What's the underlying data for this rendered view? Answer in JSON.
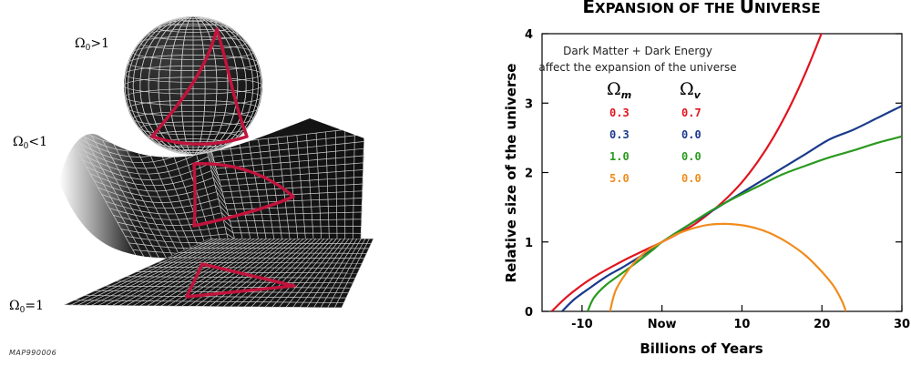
{
  "geometry_panel": {
    "labels": {
      "closed": {
        "base": "Ω",
        "sub": "0",
        "rest": ">1"
      },
      "open": {
        "base": "Ω",
        "sub": "0",
        "rest": "<1"
      },
      "flat": {
        "base": "Ω",
        "sub": "0",
        "rest": "=1"
      }
    },
    "credit": "MAP990006",
    "colors": {
      "surface": "#1a1a1a",
      "grid": "#cfcfcf",
      "triangle": "#c0143c"
    }
  },
  "chart_data": {
    "type": "line",
    "title_parts": [
      {
        "text": "E",
        "big": true
      },
      {
        "text": "XPANSION OF THE ",
        "big": false
      },
      {
        "text": "U",
        "big": true
      },
      {
        "text": "NIVERSE",
        "big": false
      }
    ],
    "xlabel": "Billions of Years",
    "ylabel": "Relative size of the universe",
    "xlim": [
      -15,
      30
    ],
    "ylim": [
      0,
      4
    ],
    "x_ticks": [
      {
        "value": -10,
        "label": "-10"
      },
      {
        "value": 0,
        "label": "Now"
      },
      {
        "value": 10,
        "label": "10"
      },
      {
        "value": 20,
        "label": "20"
      },
      {
        "value": 30,
        "label": "30"
      }
    ],
    "y_ticks": [
      0,
      1,
      2,
      3,
      4
    ],
    "annotation_lines": [
      "Dark Matter + Dark Energy",
      "affect the expansion of the universe"
    ],
    "legend_headers": {
      "m": {
        "base": "Ω",
        "sub": "m"
      },
      "v": {
        "base": "Ω",
        "sub": "v"
      }
    },
    "series": [
      {
        "omega_m": "0.3",
        "omega_v": "0.7",
        "color": "#e0141e",
        "points": [
          [
            -13.8,
            0
          ],
          [
            -12,
            0.2
          ],
          [
            -10,
            0.38
          ],
          [
            -8,
            0.53
          ],
          [
            -6,
            0.66
          ],
          [
            -4,
            0.78
          ],
          [
            -2,
            0.89
          ],
          [
            0,
            1.0
          ],
          [
            2,
            1.12
          ],
          [
            4,
            1.25
          ],
          [
            6,
            1.42
          ],
          [
            8,
            1.62
          ],
          [
            10,
            1.86
          ],
          [
            12,
            2.16
          ],
          [
            14,
            2.52
          ],
          [
            16,
            2.95
          ],
          [
            18,
            3.45
          ],
          [
            20,
            4.02
          ],
          [
            20.8,
            4.3
          ]
        ]
      },
      {
        "omega_m": "0.3",
        "omega_v": "0.0",
        "color": "#1a3a8c",
        "points": [
          [
            -12.5,
            0
          ],
          [
            -11,
            0.17
          ],
          [
            -9,
            0.34
          ],
          [
            -7,
            0.5
          ],
          [
            -5,
            0.63
          ],
          [
            -3,
            0.77
          ],
          [
            -1,
            0.92
          ],
          [
            0,
            1.0
          ],
          [
            3,
            1.22
          ],
          [
            6,
            1.43
          ],
          [
            9,
            1.64
          ],
          [
            12,
            1.85
          ],
          [
            15,
            2.06
          ],
          [
            18,
            2.27
          ],
          [
            21,
            2.48
          ],
          [
            24,
            2.62
          ],
          [
            27,
            2.79
          ],
          [
            30,
            2.96
          ]
        ]
      },
      {
        "omega_m": "1.0",
        "omega_v": "0.0",
        "color": "#2a9a1e",
        "points": [
          [
            -9.3,
            0
          ],
          [
            -8.5,
            0.2
          ],
          [
            -7,
            0.38
          ],
          [
            -5,
            0.55
          ],
          [
            -3,
            0.72
          ],
          [
            -1,
            0.9
          ],
          [
            0,
            1.0
          ],
          [
            3,
            1.22
          ],
          [
            6,
            1.44
          ],
          [
            9,
            1.63
          ],
          [
            12,
            1.8
          ],
          [
            15,
            1.97
          ],
          [
            18,
            2.1
          ],
          [
            21,
            2.22
          ],
          [
            24,
            2.32
          ],
          [
            27,
            2.43
          ],
          [
            30,
            2.52
          ]
        ]
      },
      {
        "omega_m": "5.0",
        "omega_v": "0.0",
        "color": "#f08c1e",
        "points": [
          [
            -6.5,
            0
          ],
          [
            -5.8,
            0.3
          ],
          [
            -4.5,
            0.55
          ],
          [
            -3,
            0.76
          ],
          [
            -1.5,
            0.9
          ],
          [
            0,
            1.0
          ],
          [
            2,
            1.12
          ],
          [
            4,
            1.2
          ],
          [
            6,
            1.25
          ],
          [
            8,
            1.26
          ],
          [
            10,
            1.24
          ],
          [
            12,
            1.19
          ],
          [
            14,
            1.1
          ],
          [
            16,
            0.97
          ],
          [
            18,
            0.8
          ],
          [
            20,
            0.57
          ],
          [
            21.5,
            0.36
          ],
          [
            22.5,
            0.15
          ],
          [
            23,
            0
          ]
        ]
      }
    ]
  }
}
